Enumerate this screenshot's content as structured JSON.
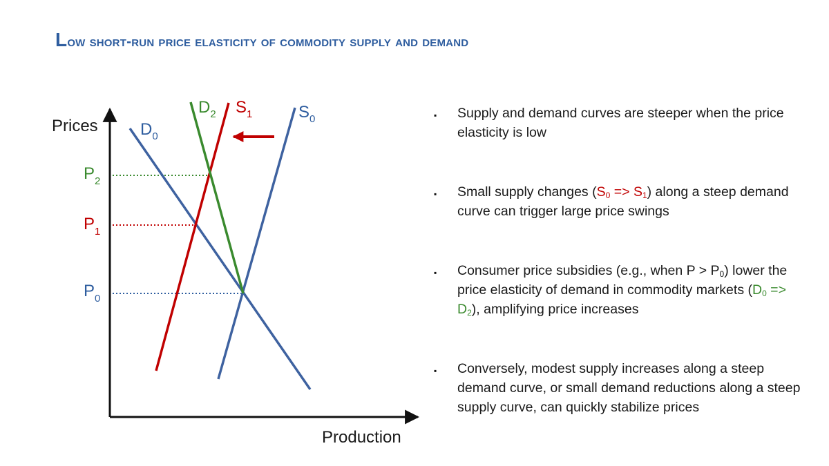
{
  "slide": {
    "title_first": "L",
    "title_rest": "ow short-run price elasticity of commodity supply and demand"
  },
  "diagram": {
    "y_axis_label": "Prices",
    "x_axis_label": "Production",
    "curves": [
      {
        "name": "D",
        "sub": "0",
        "color": "#2e5d9f"
      },
      {
        "name": "D",
        "sub": "2",
        "color": "#3a8a2e"
      },
      {
        "name": "S",
        "sub": "1",
        "color": "#c00000"
      },
      {
        "name": "S",
        "sub": "0",
        "color": "#2e5d9f"
      }
    ],
    "price_levels": [
      {
        "name": "P",
        "sub": "2",
        "color": "#3a8a2e"
      },
      {
        "name": "P",
        "sub": "1",
        "color": "#c00000"
      },
      {
        "name": "P",
        "sub": "0",
        "color": "#2e5d9f"
      }
    ],
    "shift_arrow_color": "#c00000"
  },
  "bullets": {
    "b1": {
      "text": "Supply and demand curves are steeper when the price elasticity is low"
    },
    "b2": {
      "pre": "Small supply changes (",
      "s0": "S",
      "s0_sub": "0",
      "arrow": " => ",
      "s1": "S",
      "s1_sub": "1",
      "post": ") along a steep demand curve can trigger large price swings"
    },
    "b3": {
      "pre": "Consumer price subsidies (e.g., when P > P",
      "p_sub": "0",
      "mid": ") lower the price elasticity of demand in commodity markets (",
      "d0": "D",
      "d0_sub": "0",
      "arrow": " => ",
      "d2": "D",
      "d2_sub": "2",
      "post": "), amplifying price increases"
    },
    "b4": {
      "text": "Conversely, modest supply increases along a steep demand curve, or small demand reductions along a steep supply curve, can quickly stabilize prices"
    },
    "marker": "▪"
  }
}
